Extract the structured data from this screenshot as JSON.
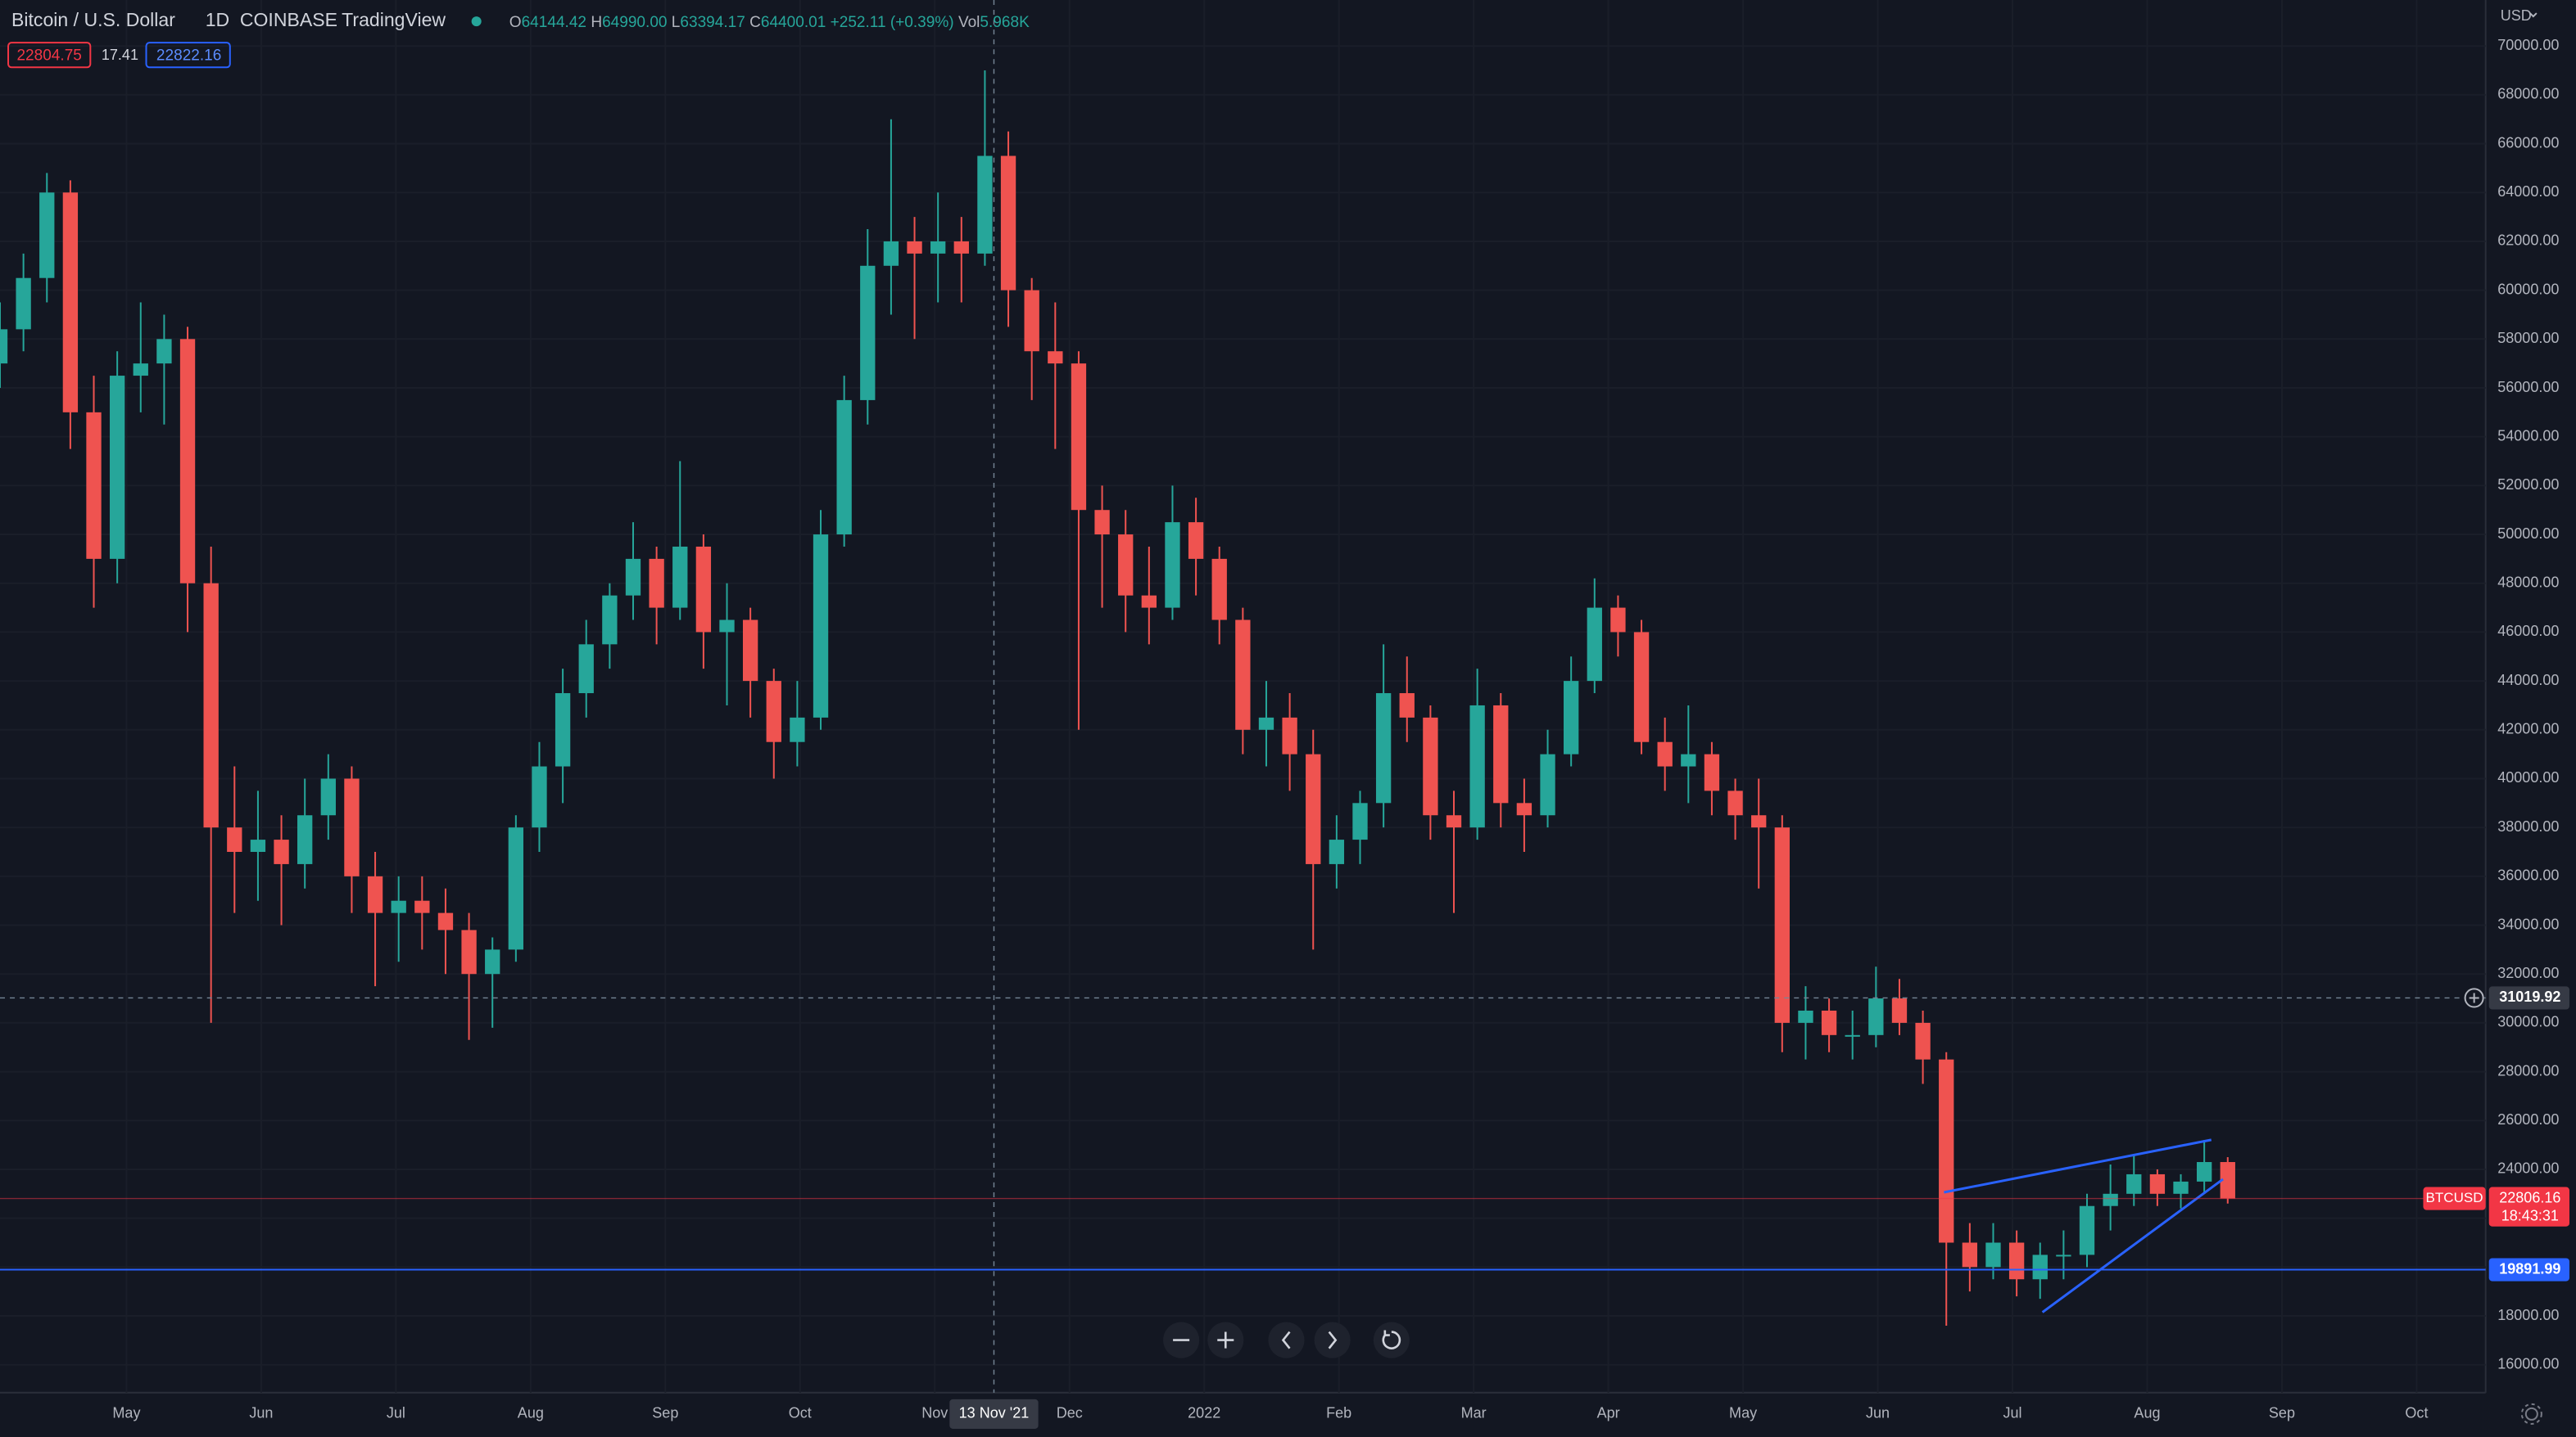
{
  "header": {
    "symbol": "Bitcoin / U.S. Dollar",
    "interval": "1D",
    "exchange": "COINBASE",
    "source": "TradingView",
    "ohlc": [
      {
        "key": "O",
        "value": "64144.42"
      },
      {
        "key": "H",
        "value": "64990.00"
      },
      {
        "key": "L",
        "value": "63394.17"
      },
      {
        "key": "C",
        "value": "64400.01"
      }
    ],
    "change": "+252.11 (+0.39%)",
    "volume_key": "Vol",
    "volume": "5.968K",
    "sell": "22804.75",
    "spread": "17.41",
    "buy": "22822.16"
  },
  "chart_data": {
    "type": "candlestick",
    "currency": "USD",
    "up_color": "#26a69a",
    "down_color": "#ef5350",
    "ylim": [
      14857,
      71883
    ],
    "yticks": [
      {
        "value": 16000,
        "label": "16000.00"
      },
      {
        "value": 18000,
        "label": "18000.00"
      },
      {
        "value": 20000,
        "label": "20000.00"
      },
      {
        "value": 22000,
        "label": "22000.00"
      },
      {
        "value": 24000,
        "label": "24000.00"
      },
      {
        "value": 26000,
        "label": "26000.00"
      },
      {
        "value": 28000,
        "label": "28000.00"
      },
      {
        "value": 30000,
        "label": "30000.00"
      },
      {
        "value": 32000,
        "label": "32000.00"
      },
      {
        "value": 34000,
        "label": "34000.00"
      },
      {
        "value": 36000,
        "label": "36000.00"
      },
      {
        "value": 38000,
        "label": "38000.00"
      },
      {
        "value": 40000,
        "label": "40000.00"
      },
      {
        "value": 42000,
        "label": "42000.00"
      },
      {
        "value": 44000,
        "label": "44000.00"
      },
      {
        "value": 46000,
        "label": "46000.00"
      },
      {
        "value": 48000,
        "label": "48000.00"
      },
      {
        "value": 50000,
        "label": "50000.00"
      },
      {
        "value": 52000,
        "label": "52000.00"
      },
      {
        "value": 54000,
        "label": "54000.00"
      },
      {
        "value": 56000,
        "label": "56000.00"
      },
      {
        "value": 58000,
        "label": "58000.00"
      },
      {
        "value": 60000,
        "label": "60000.00"
      },
      {
        "value": 62000,
        "label": "62000.00"
      },
      {
        "value": 64000,
        "label": "64000.00"
      },
      {
        "value": 66000,
        "label": "66000.00"
      },
      {
        "value": 68000,
        "label": "68000.00"
      },
      {
        "value": 70000,
        "label": "70000.00"
      }
    ],
    "xticks": [
      "May",
      "Jun",
      "Jul",
      "Aug",
      "Sep",
      "Oct",
      "Nov",
      "Dec",
      "2022",
      "Feb",
      "Mar",
      "Apr",
      "May",
      "Jun",
      "Jul",
      "Aug",
      "Sep",
      "Oct"
    ],
    "ohlc": [
      [
        57000,
        59500,
        56000,
        58400
      ],
      [
        58400,
        61500,
        57500,
        60500
      ],
      [
        60500,
        64800,
        59500,
        64000
      ],
      [
        64000,
        64500,
        53500,
        55000
      ],
      [
        55000,
        56500,
        47000,
        49000
      ],
      [
        49000,
        57500,
        48000,
        56500
      ],
      [
        56500,
        59500,
        55000,
        57000
      ],
      [
        57000,
        59000,
        54500,
        58000
      ],
      [
        58000,
        58500,
        46000,
        48000
      ],
      [
        48000,
        49500,
        30000,
        38000
      ],
      [
        38000,
        40500,
        34500,
        37000
      ],
      [
        37000,
        39500,
        35000,
        37500
      ],
      [
        37500,
        38500,
        34000,
        36500
      ],
      [
        36500,
        40000,
        35500,
        38500
      ],
      [
        38500,
        41000,
        37500,
        40000
      ],
      [
        40000,
        40500,
        34500,
        36000
      ],
      [
        36000,
        37000,
        31500,
        34500
      ],
      [
        34500,
        36000,
        32500,
        35000
      ],
      [
        35000,
        36000,
        33000,
        34500
      ],
      [
        34500,
        35500,
        32000,
        33800
      ],
      [
        33800,
        34500,
        29300,
        32000
      ],
      [
        32000,
        33500,
        29800,
        33000
      ],
      [
        33000,
        38500,
        32500,
        38000
      ],
      [
        38000,
        41500,
        37000,
        40500
      ],
      [
        40500,
        44500,
        39000,
        43500
      ],
      [
        43500,
        46500,
        42500,
        45500
      ],
      [
        45500,
        48000,
        44500,
        47500
      ],
      [
        47500,
        50500,
        46500,
        49000
      ],
      [
        49000,
        49500,
        45500,
        47000
      ],
      [
        47000,
        53000,
        46500,
        49500
      ],
      [
        49500,
        50000,
        44500,
        46000
      ],
      [
        46000,
        48000,
        43000,
        46500
      ],
      [
        46500,
        47000,
        42500,
        44000
      ],
      [
        44000,
        44500,
        40000,
        41500
      ],
      [
        41500,
        44000,
        40500,
        42500
      ],
      [
        42500,
        51000,
        42000,
        50000
      ],
      [
        50000,
        56500,
        49500,
        55500
      ],
      [
        55500,
        62500,
        54500,
        61000
      ],
      [
        61000,
        67000,
        59000,
        62000
      ],
      [
        62000,
        63000,
        58000,
        61500
      ],
      [
        61500,
        64000,
        59500,
        62000
      ],
      [
        62000,
        63000,
        59500,
        61500
      ],
      [
        61500,
        69000,
        61000,
        65500
      ],
      [
        65500,
        66500,
        58500,
        60000
      ],
      [
        60000,
        60500,
        55500,
        57500
      ],
      [
        57500,
        59500,
        53500,
        57000
      ],
      [
        57000,
        57500,
        42000,
        51000
      ],
      [
        51000,
        52000,
        47000,
        50000
      ],
      [
        50000,
        51000,
        46000,
        47500
      ],
      [
        47500,
        49500,
        45500,
        47000
      ],
      [
        47000,
        52000,
        46500,
        50500
      ],
      [
        50500,
        51500,
        47500,
        49000
      ],
      [
        49000,
        49500,
        45500,
        46500
      ],
      [
        46500,
        47000,
        41000,
        42000
      ],
      [
        42000,
        44000,
        40500,
        42500
      ],
      [
        42500,
        43500,
        39500,
        41000
      ],
      [
        41000,
        42000,
        33000,
        36500
      ],
      [
        36500,
        38500,
        35500,
        37500
      ],
      [
        37500,
        39500,
        36500,
        39000
      ],
      [
        39000,
        45500,
        38000,
        43500
      ],
      [
        43500,
        45000,
        41500,
        42500
      ],
      [
        42500,
        43000,
        37500,
        38500
      ],
      [
        38500,
        39500,
        34500,
        38000
      ],
      [
        38000,
        44500,
        37500,
        43000
      ],
      [
        43000,
        43500,
        38000,
        39000
      ],
      [
        39000,
        40000,
        37000,
        38500
      ],
      [
        38500,
        42000,
        38000,
        41000
      ],
      [
        41000,
        45000,
        40500,
        44000
      ],
      [
        44000,
        48200,
        43500,
        47000
      ],
      [
        47000,
        47500,
        45000,
        46000
      ],
      [
        46000,
        46500,
        41000,
        41500
      ],
      [
        41500,
        42500,
        39500,
        40500
      ],
      [
        40500,
        43000,
        39000,
        41000
      ],
      [
        41000,
        41500,
        38500,
        39500
      ],
      [
        39500,
        40000,
        37500,
        38500
      ],
      [
        38500,
        40000,
        35500,
        38000
      ],
      [
        38000,
        38500,
        28800,
        30000
      ],
      [
        30000,
        31500,
        28500,
        30500
      ],
      [
        30500,
        31000,
        28800,
        29500
      ],
      [
        29500,
        30500,
        28500,
        29500
      ],
      [
        29500,
        32300,
        29000,
        31000
      ],
      [
        31000,
        31800,
        29500,
        30000
      ],
      [
        30000,
        30500,
        27500,
        28500
      ],
      [
        28500,
        28800,
        17600,
        21000
      ],
      [
        21000,
        21800,
        19000,
        20000
      ],
      [
        20000,
        21800,
        19500,
        21000
      ],
      [
        21000,
        21500,
        18800,
        19500
      ],
      [
        19500,
        21000,
        18700,
        20500
      ],
      [
        20500,
        21500,
        19500,
        20500
      ],
      [
        20500,
        23000,
        20000,
        22500
      ],
      [
        22500,
        24200,
        21500,
        23000
      ],
      [
        23000,
        24600,
        22500,
        23800
      ],
      [
        23800,
        24000,
        22500,
        23000
      ],
      [
        23000,
        23800,
        22400,
        23500
      ],
      [
        23500,
        25200,
        23000,
        24300
      ],
      [
        24300,
        24500,
        22600,
        22806.16
      ]
    ],
    "current_price": {
      "name": "BTCUSD",
      "value": 22806.16,
      "countdown": "18:43:31",
      "color": "#f23645"
    },
    "horizontal_line": {
      "value": 19891.99,
      "color": "#2962ff"
    },
    "crosshair": {
      "price": 31019.92,
      "date": "13 Nov '21"
    },
    "trendlines": [
      {
        "values": [
          23060,
          25210
        ],
        "color": "#2962ff"
      },
      {
        "values": [
          18150,
          23600
        ],
        "color": "#2962ff"
      }
    ]
  }
}
